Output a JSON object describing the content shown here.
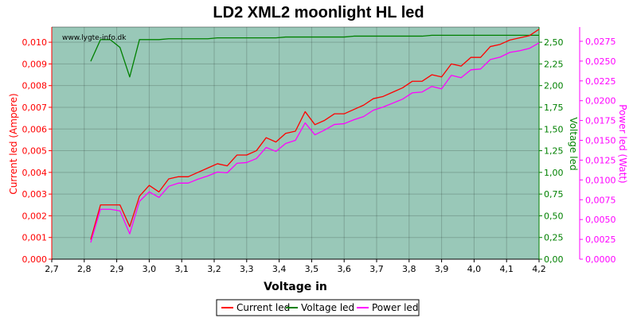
{
  "chart_data": {
    "type": "line",
    "title": "LD2 XML2 moonlight HL led",
    "watermark": "www.lygte-info.dk",
    "xlabel": "Voltage in",
    "ylabel_left": "Current led (Ampere)",
    "ylabel_right_inner": "Voltage led",
    "ylabel_right_outer": "Power led (Watt)",
    "xlim": [
      2.7,
      4.2
    ],
    "ylim_current": [
      0,
      0.0107
    ],
    "ylim_voltage": [
      0,
      2.675
    ],
    "ylim_power": [
      0,
      0.0293
    ],
    "x_ticks": [
      "2,7",
      "2,8",
      "2,9",
      "3,0",
      "3,1",
      "3,2",
      "3,3",
      "3,4",
      "3,5",
      "3,6",
      "3,7",
      "3,8",
      "3,9",
      "4,0",
      "4,1",
      "4,2"
    ],
    "y_left_ticks": [
      "0,000",
      "0,001",
      "0,002",
      "0,003",
      "0,004",
      "0,005",
      "0,006",
      "0,007",
      "0,008",
      "0,009",
      "0,010"
    ],
    "y_right_inner_ticks": [
      "0,00",
      "0,25",
      "0,50",
      "0,75",
      "1,00",
      "1,25",
      "1,50",
      "1,75",
      "2,00",
      "2,25",
      "2,50"
    ],
    "y_right_outer_ticks": [
      "0,0000",
      "0,0025",
      "0,0050",
      "0,0075",
      "0,0100",
      "0,0125",
      "0,0150",
      "0,0175",
      "0,0200",
      "0,0225",
      "0,0250",
      "0,0275"
    ],
    "grid": true,
    "legend_position": "bottom",
    "plot_background": "#99c8b8",
    "series": [
      {
        "name": "Current led",
        "color": "#ff0000",
        "axis": "current",
        "x": [
          2.82,
          2.85,
          2.88,
          2.91,
          2.94,
          2.97,
          3.0,
          3.03,
          3.06,
          3.09,
          3.12,
          3.15,
          3.18,
          3.21,
          3.24,
          3.27,
          3.3,
          3.33,
          3.36,
          3.39,
          3.42,
          3.45,
          3.48,
          3.51,
          3.54,
          3.57,
          3.6,
          3.63,
          3.66,
          3.69,
          3.72,
          3.75,
          3.78,
          3.81,
          3.84,
          3.87,
          3.9,
          3.93,
          3.96,
          3.99,
          4.02,
          4.05,
          4.08,
          4.11,
          4.14,
          4.17,
          4.2
        ],
        "values": [
          0.0009,
          0.0025,
          0.0025,
          0.0025,
          0.0015,
          0.0029,
          0.0034,
          0.0031,
          0.0037,
          0.0038,
          0.0038,
          0.004,
          0.0042,
          0.0044,
          0.0043,
          0.0048,
          0.0048,
          0.005,
          0.0056,
          0.0054,
          0.0058,
          0.0059,
          0.0068,
          0.0062,
          0.0064,
          0.0067,
          0.0067,
          0.0069,
          0.0071,
          0.0074,
          0.0075,
          0.0077,
          0.0079,
          0.0082,
          0.0082,
          0.0085,
          0.0084,
          0.009,
          0.0089,
          0.0093,
          0.0093,
          0.0098,
          0.0099,
          0.0101,
          0.0102,
          0.0103,
          0.0106
        ]
      },
      {
        "name": "Voltage led",
        "color": "#008000",
        "axis": "voltage",
        "x": [
          2.82,
          2.85,
          2.88,
          2.91,
          2.94,
          2.97,
          3.0,
          3.03,
          3.06,
          3.09,
          3.12,
          3.15,
          3.18,
          3.21,
          3.24,
          3.27,
          3.3,
          3.33,
          3.36,
          3.39,
          3.42,
          3.45,
          3.48,
          3.51,
          3.54,
          3.57,
          3.6,
          3.63,
          3.66,
          3.69,
          3.72,
          3.75,
          3.78,
          3.81,
          3.84,
          3.87,
          3.9,
          3.93,
          3.96,
          3.99,
          4.02,
          4.05,
          4.08,
          4.11,
          4.14,
          4.17,
          4.2
        ],
        "values": [
          2.28,
          2.53,
          2.53,
          2.44,
          2.1,
          2.53,
          2.53,
          2.53,
          2.54,
          2.54,
          2.54,
          2.54,
          2.54,
          2.55,
          2.55,
          2.55,
          2.55,
          2.55,
          2.55,
          2.55,
          2.56,
          2.56,
          2.56,
          2.56,
          2.56,
          2.56,
          2.56,
          2.57,
          2.57,
          2.57,
          2.57,
          2.57,
          2.57,
          2.57,
          2.57,
          2.58,
          2.58,
          2.58,
          2.58,
          2.58,
          2.58,
          2.58,
          2.58,
          2.58,
          2.58,
          2.58,
          2.58
        ]
      },
      {
        "name": "Power led",
        "color": "#ff00ff",
        "axis": "power",
        "x": [
          2.82,
          2.85,
          2.88,
          2.91,
          2.94,
          2.97,
          3.0,
          3.03,
          3.06,
          3.09,
          3.12,
          3.15,
          3.18,
          3.21,
          3.24,
          3.27,
          3.3,
          3.33,
          3.36,
          3.39,
          3.42,
          3.45,
          3.48,
          3.51,
          3.54,
          3.57,
          3.6,
          3.63,
          3.66,
          3.69,
          3.72,
          3.75,
          3.78,
          3.81,
          3.84,
          3.87,
          3.9,
          3.93,
          3.96,
          3.99,
          4.02,
          4.05,
          4.08,
          4.11,
          4.14,
          4.17,
          4.2
        ],
        "values": [
          0.0021,
          0.0063,
          0.0063,
          0.0061,
          0.0032,
          0.0073,
          0.0085,
          0.0078,
          0.0092,
          0.0096,
          0.0096,
          0.0101,
          0.0105,
          0.011,
          0.0109,
          0.0121,
          0.0122,
          0.0127,
          0.0141,
          0.0136,
          0.0146,
          0.015,
          0.0172,
          0.0157,
          0.0163,
          0.017,
          0.0171,
          0.0176,
          0.018,
          0.0188,
          0.0192,
          0.0197,
          0.0202,
          0.021,
          0.0211,
          0.0218,
          0.0215,
          0.0232,
          0.0229,
          0.0239,
          0.024,
          0.0252,
          0.0255,
          0.0261,
          0.0263,
          0.0266,
          0.0273
        ]
      }
    ]
  }
}
